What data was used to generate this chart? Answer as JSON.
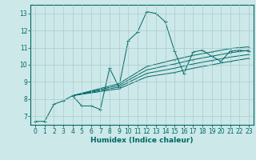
{
  "title": "",
  "xlabel": "Humidex (Indice chaleur)",
  "ylabel": "",
  "bg_color": "#cce8e8",
  "line_color": "#006666",
  "grid_color": "#aacccc",
  "xlim": [
    -0.5,
    23.5
  ],
  "ylim": [
    6.5,
    13.5
  ],
  "xticks": [
    0,
    1,
    2,
    3,
    4,
    5,
    6,
    7,
    8,
    9,
    10,
    11,
    12,
    13,
    14,
    15,
    16,
    17,
    18,
    19,
    20,
    21,
    22,
    23
  ],
  "yticks": [
    7,
    8,
    9,
    10,
    11,
    12,
    13
  ],
  "series": [
    {
      "x": [
        0,
        1,
        2,
        3,
        4,
        5,
        6,
        7,
        8,
        9,
        10,
        11,
        12,
        13,
        14,
        15,
        16,
        17,
        18,
        19,
        20,
        21,
        22,
        23
      ],
      "y": [
        6.7,
        6.7,
        7.7,
        7.9,
        8.2,
        7.6,
        7.6,
        7.4,
        9.8,
        8.7,
        11.4,
        11.9,
        13.1,
        13.0,
        12.5,
        10.8,
        9.5,
        10.75,
        10.85,
        10.5,
        10.2,
        10.8,
        10.85,
        10.8
      ]
    },
    {
      "x": [
        4,
        9,
        12,
        15,
        17,
        19,
        21,
        23
      ],
      "y": [
        8.2,
        8.9,
        9.9,
        10.3,
        10.55,
        10.75,
        10.95,
        11.05
      ]
    },
    {
      "x": [
        4,
        9,
        12,
        15,
        17,
        19,
        21,
        23
      ],
      "y": [
        8.2,
        8.8,
        9.7,
        10.05,
        10.3,
        10.5,
        10.7,
        10.85
      ]
    },
    {
      "x": [
        4,
        9,
        12,
        15,
        17,
        19,
        21,
        23
      ],
      "y": [
        8.2,
        8.7,
        9.5,
        9.8,
        10.05,
        10.25,
        10.45,
        10.6
      ]
    },
    {
      "x": [
        4,
        9,
        12,
        15,
        17,
        19,
        21,
        23
      ],
      "y": [
        8.2,
        8.6,
        9.3,
        9.55,
        9.8,
        10.0,
        10.2,
        10.38
      ]
    }
  ]
}
